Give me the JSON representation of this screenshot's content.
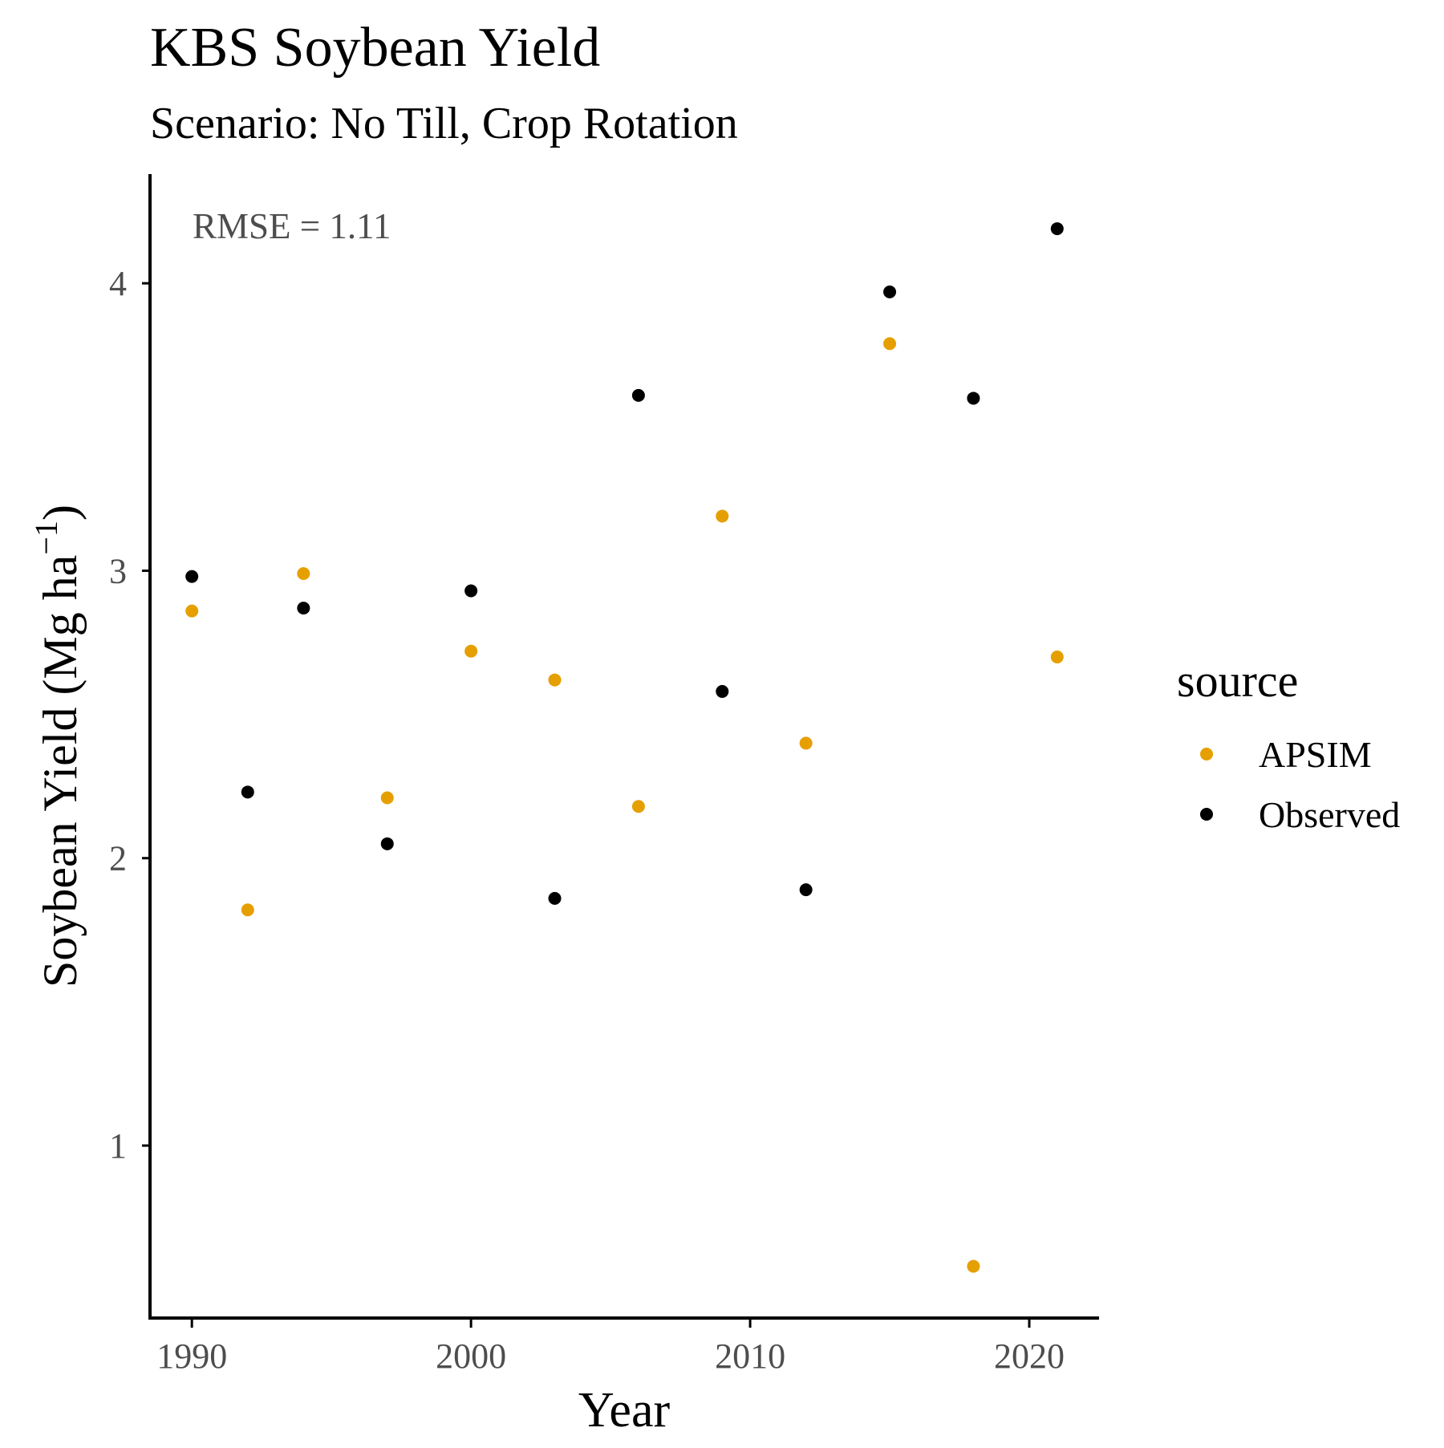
{
  "chart_data": {
    "type": "scatter",
    "title": "KBS Soybean Yield",
    "subtitle": "Scenario: No Till, Crop Rotation",
    "xlabel": "Year",
    "ylabel_main": "Soybean Yield (Mg ha",
    "ylabel_sup": "−1",
    "ylabel_close": ")",
    "annotation": "RMSE = 1.11",
    "xlim": [
      1988.5,
      2022.5
    ],
    "ylim": [
      0.4,
      4.38
    ],
    "x_ticks": [
      1990,
      2000,
      2010,
      2020
    ],
    "y_ticks": [
      1,
      2,
      3,
      4
    ],
    "grid": false,
    "legend": {
      "title": "source",
      "placement": "right"
    },
    "series": [
      {
        "name": "APSIM",
        "color": "#E69F00",
        "points": [
          {
            "x": 1990,
            "y": 2.86
          },
          {
            "x": 1992,
            "y": 1.82
          },
          {
            "x": 1994,
            "y": 2.99
          },
          {
            "x": 1997,
            "y": 2.21
          },
          {
            "x": 2000,
            "y": 2.72
          },
          {
            "x": 2003,
            "y": 2.62
          },
          {
            "x": 2006,
            "y": 2.18
          },
          {
            "x": 2009,
            "y": 3.19
          },
          {
            "x": 2012,
            "y": 2.4
          },
          {
            "x": 2015,
            "y": 3.79
          },
          {
            "x": 2018,
            "y": 0.58
          },
          {
            "x": 2021,
            "y": 2.7
          }
        ]
      },
      {
        "name": "Observed",
        "color": "#000000",
        "points": [
          {
            "x": 1990,
            "y": 2.98
          },
          {
            "x": 1992,
            "y": 2.23
          },
          {
            "x": 1994,
            "y": 2.87
          },
          {
            "x": 1997,
            "y": 2.05
          },
          {
            "x": 2000,
            "y": 2.93
          },
          {
            "x": 2003,
            "y": 1.86
          },
          {
            "x": 2006,
            "y": 3.61
          },
          {
            "x": 2009,
            "y": 2.58
          },
          {
            "x": 2012,
            "y": 1.89
          },
          {
            "x": 2015,
            "y": 3.97
          },
          {
            "x": 2018,
            "y": 3.6
          },
          {
            "x": 2021,
            "y": 4.19
          }
        ]
      }
    ]
  }
}
